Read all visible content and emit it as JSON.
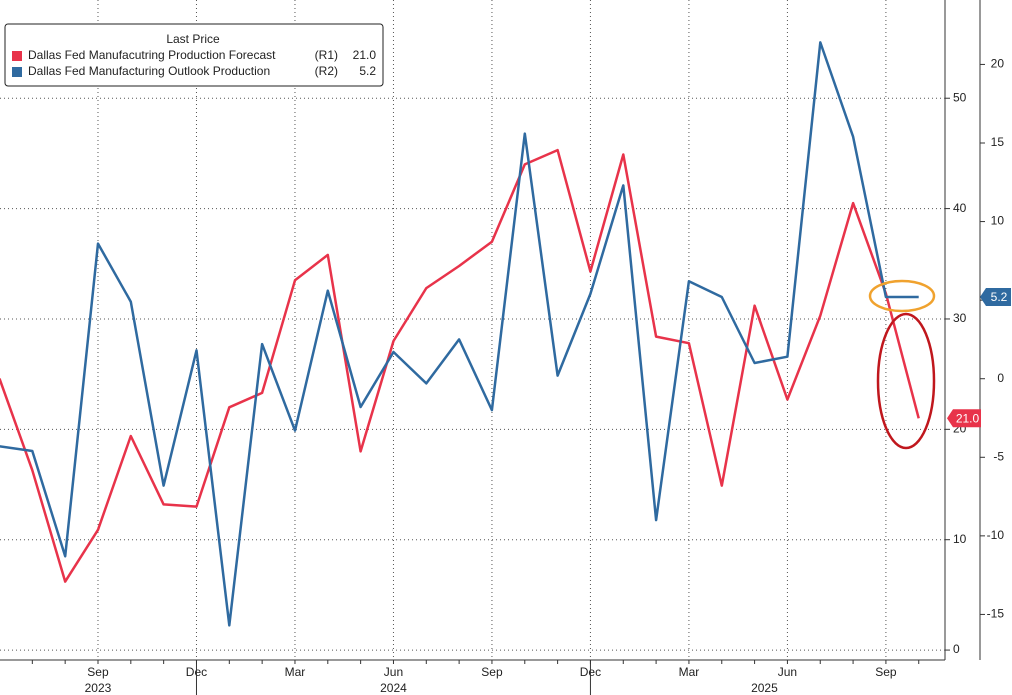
{
  "chart_data": {
    "type": "line",
    "legend_title": "Last Price",
    "legend_corner": "top-left",
    "grid": true,
    "categories": [
      null,
      null,
      null,
      "Sep",
      null,
      null,
      "Dec",
      null,
      null,
      "Mar",
      null,
      null,
      "Jun",
      null,
      null,
      "Sep",
      null,
      null,
      "Dec",
      null,
      null,
      "Mar",
      null,
      null,
      "Jun",
      null,
      null,
      "Sep",
      null
    ],
    "year_labels": [
      {
        "label": "2023",
        "at": 3
      },
      {
        "label": "2024",
        "at": 12
      },
      {
        "label": "2025",
        "at": 23.3
      }
    ],
    "ylim": [
      -0.9,
      58.9
    ],
    "yticks": [
      0,
      10,
      20,
      30,
      40,
      50
    ],
    "y2lim": [
      -17.9,
      24.1
    ],
    "y2ticks": [
      -15,
      -10,
      -5,
      0,
      5,
      10,
      15,
      20
    ],
    "series": [
      {
        "name": "Dallas Fed Manufacutring Production Forecast",
        "axis_tag": "(R1)",
        "last_price_label": "21.0",
        "color": "#e8334a",
        "axis": "y",
        "values": [
          24.6,
          16.3,
          6.2,
          10.9,
          19.4,
          13.2,
          13.0,
          22.0,
          23.3,
          33.5,
          35.8,
          18.0,
          28.0,
          32.8,
          34.8,
          37.0,
          44.0,
          45.3,
          34.3,
          44.9,
          28.4,
          27.8,
          14.9,
          31.2,
          22.7,
          30.3,
          40.5,
          32.3,
          21.0
        ]
      },
      {
        "name": "Dallas Fed Manufacturing Outlook Production",
        "axis_tag": "(R2)",
        "last_price_label": "5.2",
        "color": "#2f6aa0",
        "axis": "y2",
        "values": [
          -4.3,
          -4.6,
          -11.3,
          8.6,
          4.9,
          -6.8,
          1.8,
          -15.7,
          2.2,
          -3.3,
          5.6,
          -1.8,
          1.7,
          -0.3,
          2.5,
          -2.0,
          15.6,
          0.2,
          5.4,
          12.3,
          -9.0,
          6.2,
          5.2,
          1.0,
          1.4,
          21.4,
          15.4,
          5.2,
          5.2
        ]
      }
    ]
  }
}
